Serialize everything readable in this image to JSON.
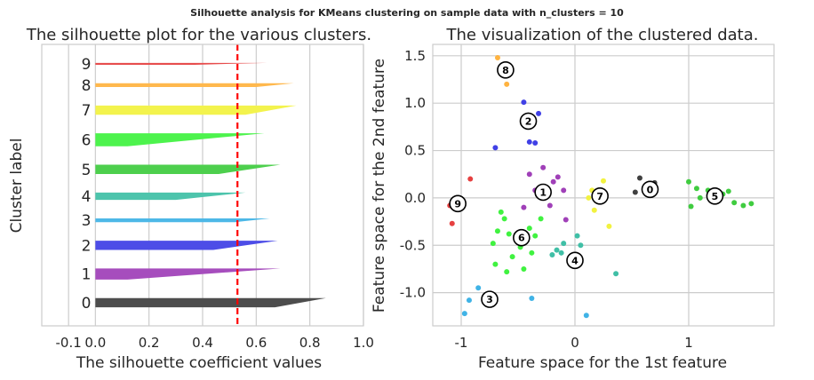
{
  "suptitle": "Silhouette analysis for KMeans clustering on sample data with n_clusters = 10",
  "chart_data": [
    {
      "type": "area",
      "title": "The silhouette plot for the various clusters.",
      "xlabel": "The silhouette coefficient values",
      "ylabel": "Cluster label",
      "xlim": [
        -0.2,
        1.0
      ],
      "xticks": [
        -0.1,
        0.0,
        0.2,
        0.4,
        0.6,
        0.8,
        1.0
      ],
      "xtick_labels": [
        "-0.1",
        "0.0",
        "0.2",
        "0.4",
        "0.6",
        "0.8",
        "1.0"
      ],
      "grid": true,
      "average_silhouette_score": 0.53,
      "average_line_color": "#ff0000",
      "clusters": [
        {
          "label": "0",
          "size": 5,
          "start": 0.67,
          "end": 0.86,
          "color": "#000000"
        },
        {
          "label": "1",
          "size": 6,
          "start": 0.12,
          "end": 0.69,
          "color": "#8000a0"
        },
        {
          "label": "2",
          "size": 5,
          "start": 0.44,
          "end": 0.68,
          "color": "#0000dd"
        },
        {
          "label": "3",
          "size": 2,
          "start": 0.52,
          "end": 0.65,
          "color": "#0099dd"
        },
        {
          "label": "4",
          "size": 4,
          "start": 0.3,
          "end": 0.56,
          "color": "#00aa88"
        },
        {
          "label": "5",
          "size": 5,
          "start": 0.46,
          "end": 0.69,
          "color": "#00bb00"
        },
        {
          "label": "6",
          "size": 7,
          "start": 0.12,
          "end": 0.63,
          "color": "#00ee00"
        },
        {
          "label": "7",
          "size": 5,
          "start": 0.56,
          "end": 0.75,
          "color": "#eeee00"
        },
        {
          "label": "8",
          "size": 2,
          "start": 0.6,
          "end": 0.74,
          "color": "#ff9900"
        },
        {
          "label": "9",
          "size": 1,
          "start": 0.37,
          "end": 0.64,
          "color": "#dd0000"
        }
      ]
    },
    {
      "type": "scatter",
      "title": "The visualization of the clustered data.",
      "xlabel": "Feature space for the 1st feature",
      "ylabel": "Feature space for the 2nd feature",
      "xlim": [
        -1.25,
        1.75
      ],
      "ylim": [
        -1.35,
        1.62
      ],
      "xticks": [
        -1,
        0,
        1
      ],
      "xtick_labels": [
        "-1",
        "0",
        "1"
      ],
      "yticks": [
        -1.0,
        -0.5,
        0.0,
        0.5,
        1.0,
        1.5
      ],
      "ytick_labels": [
        "-1.0",
        "-0.5",
        "0.0",
        "0.5",
        "1.0",
        "1.5"
      ],
      "grid": true,
      "points": [
        {
          "x": 0.57,
          "y": 0.21,
          "c": 0
        },
        {
          "x": 0.53,
          "y": 0.06,
          "c": 0
        },
        {
          "x": 0.7,
          "y": 0.16,
          "c": 0
        },
        {
          "x": 0.68,
          "y": 0.03,
          "c": 0
        },
        {
          "x": 0.63,
          "y": 0.12,
          "c": 0
        },
        {
          "x": -0.28,
          "y": 0.32,
          "c": 1
        },
        {
          "x": -0.4,
          "y": 0.25,
          "c": 1
        },
        {
          "x": -0.19,
          "y": 0.17,
          "c": 1
        },
        {
          "x": -0.15,
          "y": 0.22,
          "c": 1
        },
        {
          "x": -0.1,
          "y": 0.08,
          "c": 1
        },
        {
          "x": -0.35,
          "y": 0.08,
          "c": 1
        },
        {
          "x": -0.22,
          "y": -0.08,
          "c": 1
        },
        {
          "x": -0.08,
          "y": -0.23,
          "c": 1
        },
        {
          "x": -0.45,
          "y": -0.1,
          "c": 1
        },
        {
          "x": -0.45,
          "y": 1.01,
          "c": 2
        },
        {
          "x": -0.32,
          "y": 0.89,
          "c": 2
        },
        {
          "x": -0.4,
          "y": 0.59,
          "c": 2
        },
        {
          "x": -0.35,
          "y": 0.58,
          "c": 2
        },
        {
          "x": -0.7,
          "y": 0.53,
          "c": 2
        },
        {
          "x": -0.97,
          "y": -1.22,
          "c": 3
        },
        {
          "x": -0.93,
          "y": -1.08,
          "c": 3
        },
        {
          "x": -0.85,
          "y": -0.95,
          "c": 3
        },
        {
          "x": -0.38,
          "y": -1.06,
          "c": 3
        },
        {
          "x": 0.1,
          "y": -1.24,
          "c": 3
        },
        {
          "x": -0.1,
          "y": -0.48,
          "c": 4
        },
        {
          "x": -0.16,
          "y": -0.55,
          "c": 4
        },
        {
          "x": -0.2,
          "y": -0.6,
          "c": 4
        },
        {
          "x": -0.12,
          "y": -0.58,
          "c": 4
        },
        {
          "x": 0.05,
          "y": -0.5,
          "c": 4
        },
        {
          "x": 0.36,
          "y": -0.8,
          "c": 4
        },
        {
          "x": 0.02,
          "y": -0.4,
          "c": 4
        },
        {
          "x": 1.0,
          "y": 0.17,
          "c": 5
        },
        {
          "x": 1.07,
          "y": 0.1,
          "c": 5
        },
        {
          "x": 1.1,
          "y": 0.0,
          "c": 5
        },
        {
          "x": 1.17,
          "y": 0.08,
          "c": 5
        },
        {
          "x": 1.02,
          "y": -0.09,
          "c": 5
        },
        {
          "x": 1.35,
          "y": 0.07,
          "c": 5
        },
        {
          "x": 1.4,
          "y": -0.05,
          "c": 5
        },
        {
          "x": 1.48,
          "y": -0.08,
          "c": 5
        },
        {
          "x": 1.55,
          "y": -0.06,
          "c": 5
        },
        {
          "x": 1.3,
          "y": 0.04,
          "c": 5
        },
        {
          "x": -0.68,
          "y": -0.35,
          "c": 6
        },
        {
          "x": -0.58,
          "y": -0.38,
          "c": 6
        },
        {
          "x": -0.52,
          "y": -0.44,
          "c": 6
        },
        {
          "x": -0.48,
          "y": -0.52,
          "c": 6
        },
        {
          "x": -0.4,
          "y": -0.32,
          "c": 6
        },
        {
          "x": -0.35,
          "y": -0.4,
          "c": 6
        },
        {
          "x": -0.62,
          "y": -0.22,
          "c": 6
        },
        {
          "x": -0.7,
          "y": -0.7,
          "c": 6
        },
        {
          "x": -0.55,
          "y": -0.62,
          "c": 6
        },
        {
          "x": -0.3,
          "y": -0.22,
          "c": 6
        },
        {
          "x": -0.45,
          "y": -0.75,
          "c": 6
        },
        {
          "x": -0.6,
          "y": -0.78,
          "c": 6
        },
        {
          "x": -0.72,
          "y": -0.48,
          "c": 6
        },
        {
          "x": -0.38,
          "y": -0.58,
          "c": 6
        },
        {
          "x": -0.65,
          "y": -0.15,
          "c": 6
        },
        {
          "x": 0.15,
          "y": 0.08,
          "c": 7
        },
        {
          "x": 0.2,
          "y": 0.04,
          "c": 7
        },
        {
          "x": 0.25,
          "y": 0.18,
          "c": 7
        },
        {
          "x": 0.17,
          "y": -0.13,
          "c": 7
        },
        {
          "x": 0.3,
          "y": -0.3,
          "c": 7
        },
        {
          "x": 0.12,
          "y": 0.0,
          "c": 7
        },
        {
          "x": -0.68,
          "y": 1.48,
          "c": 8
        },
        {
          "x": -0.6,
          "y": 1.2,
          "c": 8
        },
        {
          "x": -1.08,
          "y": -0.27,
          "c": 9
        },
        {
          "x": -1.1,
          "y": -0.08,
          "c": 9
        },
        {
          "x": -0.92,
          "y": 0.2,
          "c": 9
        }
      ],
      "centers": [
        {
          "label": "0",
          "x": 0.66,
          "y": 0.09
        },
        {
          "label": "1",
          "x": -0.28,
          "y": 0.06
        },
        {
          "label": "2",
          "x": -0.41,
          "y": 0.81
        },
        {
          "label": "3",
          "x": -0.75,
          "y": -1.07
        },
        {
          "label": "4",
          "x": 0.0,
          "y": -0.66
        },
        {
          "label": "5",
          "x": 1.23,
          "y": 0.02
        },
        {
          "label": "6",
          "x": -0.47,
          "y": -0.42
        },
        {
          "label": "7",
          "x": 0.22,
          "y": 0.02
        },
        {
          "label": "8",
          "x": -0.61,
          "y": 1.35
        },
        {
          "label": "9",
          "x": -1.03,
          "y": -0.06
        }
      ]
    }
  ]
}
